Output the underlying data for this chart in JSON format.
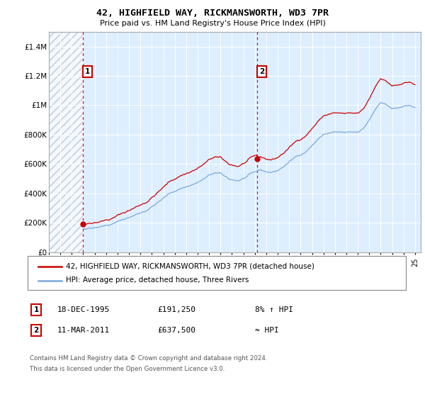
{
  "title": "42, HIGHFIELD WAY, RICKMANSWORTH, WD3 7PR",
  "subtitle": "Price paid vs. HM Land Registry's House Price Index (HPI)",
  "legend_line1": "42, HIGHFIELD WAY, RICKMANSWORTH, WD3 7PR (detached house)",
  "legend_line2": "HPI: Average price, detached house, Three Rivers",
  "sale1_date_str": "18-DEC-1995",
  "sale1_price": 191250,
  "sale1_note": "8% ↑ HPI",
  "sale2_date_str": "11-MAR-2011",
  "sale2_price": 637500,
  "sale2_note": "≈ HPI",
  "sale1_year": 1995.96,
  "sale2_year": 2011.19,
  "footnote1": "Contains HM Land Registry data © Crown copyright and database right 2024.",
  "footnote2": "This data is licensed under the Open Government Licence v3.0.",
  "red_color": "#cc0000",
  "blue_color": "#7aaadd",
  "bg_color": "#ddeeff",
  "ylim": [
    0,
    1500000
  ],
  "yticks": [
    0,
    200000,
    400000,
    600000,
    800000,
    1000000,
    1200000,
    1400000
  ],
  "ytick_labels": [
    "£0",
    "£200K",
    "£400K",
    "£600K",
    "£800K",
    "£1M",
    "£1.2M",
    "£1.4M"
  ],
  "xmin": 1993.0,
  "xmax": 2025.5
}
